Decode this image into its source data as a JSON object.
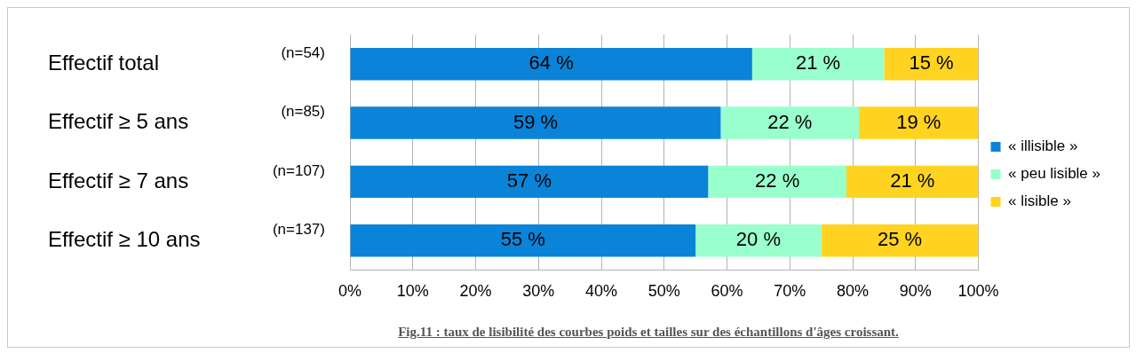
{
  "chart_data": {
    "type": "bar",
    "orientation": "horizontal",
    "stacked": true,
    "categories": [
      "Effectif total",
      "Effectif ≥ 5 ans",
      "Effectif ≥ 7 ans",
      "Effectif ≥ 10 ans"
    ],
    "series": [
      {
        "name": "« illisible »",
        "color": "#0a84d8",
        "values": [
          64,
          59,
          57,
          55
        ],
        "value_labels": [
          "64 %",
          "59 %",
          "57 %",
          "55 %"
        ]
      },
      {
        "name": "« peu lisible »",
        "color": "#99ffcc",
        "values": [
          21,
          22,
          22,
          20
        ],
        "value_labels": [
          "21 %",
          "22 %",
          "22 %",
          "20 %"
        ]
      },
      {
        "name": "« lisible »",
        "color": "#ffd320",
        "values": [
          15,
          19,
          21,
          25
        ],
        "value_labels": [
          "15 %",
          "19 %",
          "21 %",
          "25 %"
        ]
      }
    ],
    "xlim": [
      0,
      100
    ],
    "xticks": [
      {
        "value": 0,
        "label": "0%"
      },
      {
        "value": 10,
        "label": "10%"
      },
      {
        "value": 20,
        "label": "20%"
      },
      {
        "value": 30,
        "label": "30%"
      },
      {
        "value": 40,
        "label": "40%"
      },
      {
        "value": 50,
        "label": "50%"
      },
      {
        "value": 60,
        "label": "60%"
      },
      {
        "value": 70,
        "label": "70%"
      },
      {
        "value": 80,
        "label": "80%"
      },
      {
        "value": 90,
        "label": "90%"
      },
      {
        "value": 100,
        "label": "100%"
      }
    ],
    "grid": "x",
    "legend": "right",
    "annotations": [
      "(n=54)",
      "(n=85)",
      "(n=107)",
      "(n=137)",
      "Fig.11 : taux de lisibilité des courbes poids et tailles sur des échantillons d'âges croissant."
    ]
  }
}
